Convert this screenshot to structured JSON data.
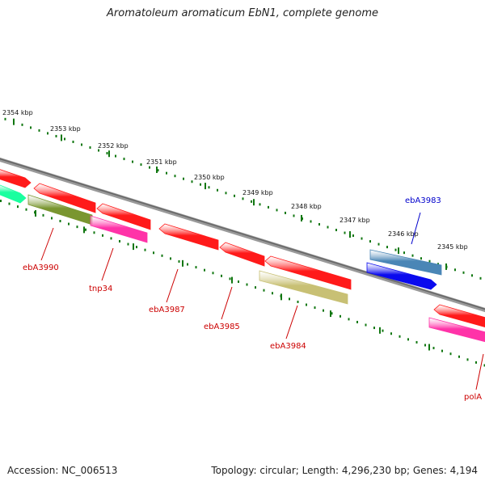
{
  "title": "Aromatoleum aromaticum EbN1, complete genome",
  "footer": {
    "accession": "Accession: NC_006513",
    "stats": "Topology: circular; Length: 4,296,230 bp; Genes: 4,194"
  },
  "colors": {
    "red": "#ff1a1a",
    "aqua": "#1aff9f",
    "olive": "#7a9630",
    "pink": "#ff33a8",
    "khaki": "#c8c074",
    "steel": "#4a86b6",
    "blue": "#0a0aee",
    "label_red": "#cc0000",
    "label_blue": "#0000cc",
    "backbone": "#888888",
    "tick": "#117711"
  },
  "ruler": [
    {
      "label": "2354 kbp"
    },
    {
      "label": "2353 kbp"
    },
    {
      "label": "2352 kbp"
    },
    {
      "label": "2351 kbp"
    },
    {
      "label": "2350 kbp"
    },
    {
      "label": "2349 kbp"
    },
    {
      "label": "2348 kbp"
    },
    {
      "label": "2347 kbp"
    },
    {
      "label": "2346 kbp"
    },
    {
      "label": "2345 kbp"
    }
  ],
  "gene_labels": [
    {
      "label": "ebA3990",
      "color": "red"
    },
    {
      "label": "tnp34",
      "color": "red"
    },
    {
      "label": "ebA3987",
      "color": "red"
    },
    {
      "label": "ebA3985",
      "color": "red"
    },
    {
      "label": "ebA3984",
      "color": "red"
    },
    {
      "label": "polA",
      "color": "red"
    },
    {
      "label": "ebA3983",
      "color": "blue"
    }
  ]
}
